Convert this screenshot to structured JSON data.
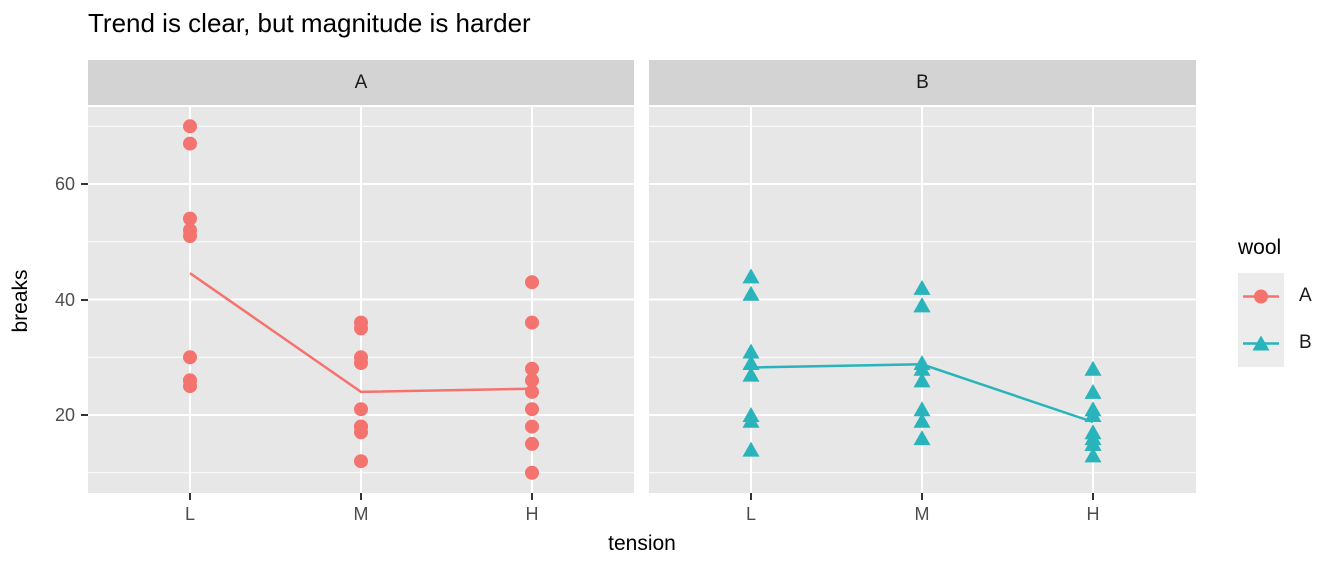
{
  "chart_data": {
    "type": "scatter",
    "title": "Trend is clear, but magnitude is harder",
    "xlabel": "tension",
    "ylabel": "breaks",
    "x_categories": [
      "L",
      "M",
      "H"
    ],
    "y_ticks": [
      20,
      40,
      60
    ],
    "y_minor_ticks": [
      10,
      30,
      50,
      70
    ],
    "ylim": [
      6.6,
      74
    ],
    "grid": "white major and minor lines on gray panel",
    "legend": {
      "title": "wool",
      "position": "right",
      "entries": [
        {
          "label": "A",
          "marker": "circle",
          "color": "#F4736E"
        },
        {
          "label": "B",
          "marker": "triangle",
          "color": "#28B4BA"
        }
      ]
    },
    "facets": [
      {
        "label": "A",
        "series_color": "#F4736E",
        "marker": "circle",
        "points": {
          "L": [
            26,
            30,
            54,
            25,
            70,
            52,
            51,
            26,
            67
          ],
          "M": [
            18,
            21,
            29,
            17,
            12,
            18,
            35,
            30,
            36
          ],
          "H": [
            36,
            21,
            24,
            18,
            10,
            43,
            28,
            15,
            26
          ]
        },
        "means": {
          "L": 44.56,
          "M": 24.0,
          "H": 24.56
        }
      },
      {
        "label": "B",
        "series_color": "#28B4BA",
        "marker": "triangle",
        "points": {
          "L": [
            27,
            14,
            29,
            19,
            29,
            31,
            41,
            20,
            44
          ],
          "M": [
            42,
            26,
            19,
            16,
            39,
            28,
            21,
            39,
            29
          ],
          "H": [
            20,
            21,
            24,
            17,
            13,
            15,
            15,
            16,
            28
          ]
        },
        "means": {
          "L": 28.22,
          "M": 28.78,
          "H": 18.78
        }
      }
    ]
  },
  "colors": {
    "panel_bg": "#E7E7E7",
    "strip_bg": "#D3D3D3",
    "grid": "#FFFFFF",
    "legend_key_bg": "#ECECEC",
    "tick_label": "#4D4D4D",
    "tick_mark": "#333333",
    "text": "#1A1A1A"
  }
}
